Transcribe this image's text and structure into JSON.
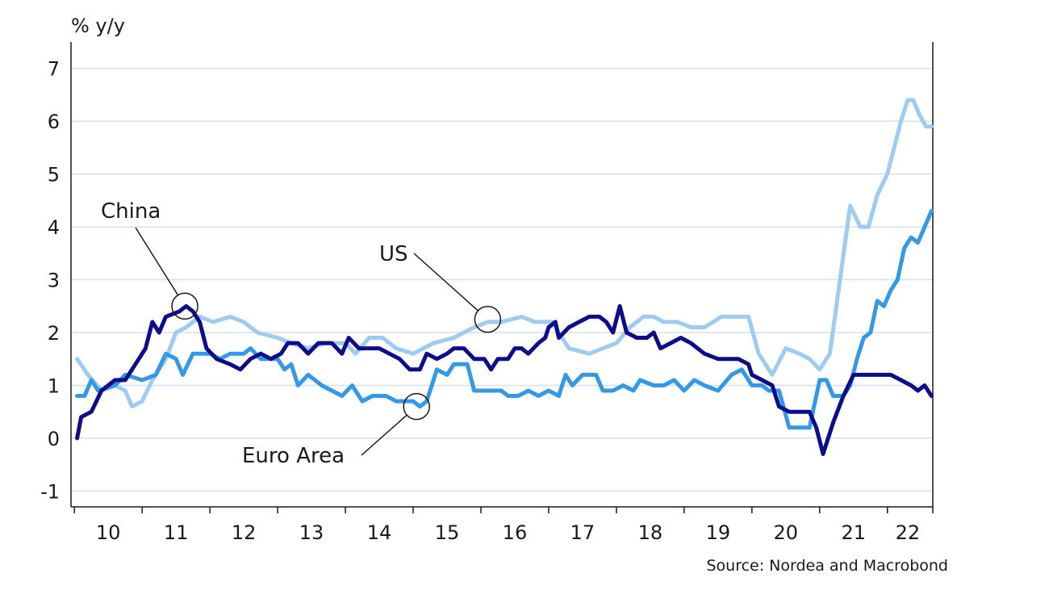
{
  "chart_data": {
    "type": "line",
    "unit_label": "% y/y",
    "source": "Source: Nordea and Macrobond",
    "y_axis": {
      "range": [
        -1.3,
        7.5
      ],
      "ticks": [
        -1,
        0,
        1,
        2,
        3,
        4,
        5,
        6,
        7
      ],
      "gridlines": true
    },
    "x_axis": {
      "range": [
        2009.95,
        2022.67
      ],
      "tick_positions": [
        2010,
        2011,
        2012,
        2013,
        2014,
        2015,
        2016,
        2017,
        2018,
        2019,
        2020,
        2021,
        2022
      ],
      "labels": [
        {
          "label": "10",
          "at": 2010.5
        },
        {
          "label": "11",
          "at": 2011.5
        },
        {
          "label": "12",
          "at": 2012.5
        },
        {
          "label": "13",
          "at": 2013.5
        },
        {
          "label": "14",
          "at": 2014.5
        },
        {
          "label": "15",
          "at": 2015.5
        },
        {
          "label": "16",
          "at": 2016.5
        },
        {
          "label": "17",
          "at": 2017.5
        },
        {
          "label": "18",
          "at": 2018.5
        },
        {
          "label": "19",
          "at": 2019.5
        },
        {
          "label": "20",
          "at": 2020.5
        },
        {
          "label": "21",
          "at": 2021.5
        },
        {
          "label": "22",
          "at": 2022.3
        }
      ]
    },
    "series": [
      {
        "name": "US",
        "color": "#9dcbf2",
        "points": [
          [
            2010.04,
            1.5
          ],
          [
            2010.2,
            1.2
          ],
          [
            2010.4,
            0.9
          ],
          [
            2010.6,
            1.0
          ],
          [
            2010.75,
            0.9
          ],
          [
            2010.85,
            0.6
          ],
          [
            2011.0,
            0.7
          ],
          [
            2011.15,
            1.1
          ],
          [
            2011.35,
            1.5
          ],
          [
            2011.5,
            2.0
          ],
          [
            2011.65,
            2.1
          ],
          [
            2011.85,
            2.3
          ],
          [
            2012.05,
            2.2
          ],
          [
            2012.3,
            2.3
          ],
          [
            2012.5,
            2.2
          ],
          [
            2012.7,
            2.0
          ],
          [
            2013.0,
            1.9
          ],
          [
            2013.2,
            1.8
          ],
          [
            2013.45,
            1.7
          ],
          [
            2013.7,
            1.8
          ],
          [
            2014.0,
            1.8
          ],
          [
            2014.15,
            1.6
          ],
          [
            2014.35,
            1.9
          ],
          [
            2014.55,
            1.9
          ],
          [
            2014.75,
            1.7
          ],
          [
            2015.0,
            1.6
          ],
          [
            2015.3,
            1.8
          ],
          [
            2015.6,
            1.9
          ],
          [
            2015.9,
            2.1
          ],
          [
            2016.1,
            2.2
          ],
          [
            2016.3,
            2.2
          ],
          [
            2016.6,
            2.3
          ],
          [
            2016.8,
            2.2
          ],
          [
            2017.05,
            2.2
          ],
          [
            2017.3,
            1.7
          ],
          [
            2017.6,
            1.6
          ],
          [
            2017.8,
            1.7
          ],
          [
            2018.0,
            1.8
          ],
          [
            2018.2,
            2.1
          ],
          [
            2018.4,
            2.3
          ],
          [
            2018.55,
            2.3
          ],
          [
            2018.7,
            2.2
          ],
          [
            2018.9,
            2.2
          ],
          [
            2019.1,
            2.1
          ],
          [
            2019.3,
            2.1
          ],
          [
            2019.55,
            2.3
          ],
          [
            2019.75,
            2.3
          ],
          [
            2019.95,
            2.3
          ],
          [
            2020.1,
            1.6
          ],
          [
            2020.3,
            1.2
          ],
          [
            2020.5,
            1.7
          ],
          [
            2020.7,
            1.6
          ],
          [
            2020.85,
            1.5
          ],
          [
            2021.0,
            1.3
          ],
          [
            2021.15,
            1.6
          ],
          [
            2021.3,
            3.0
          ],
          [
            2021.45,
            4.4
          ],
          [
            2021.6,
            4.0
          ],
          [
            2021.72,
            4.0
          ],
          [
            2021.85,
            4.6
          ],
          [
            2022.0,
            5.0
          ],
          [
            2022.1,
            5.5
          ],
          [
            2022.2,
            6.0
          ],
          [
            2022.3,
            6.4
          ],
          [
            2022.38,
            6.4
          ],
          [
            2022.48,
            6.1
          ],
          [
            2022.57,
            5.9
          ],
          [
            2022.65,
            5.9
          ]
        ]
      },
      {
        "name": "Euro Area",
        "color": "#3399e6",
        "points": [
          [
            2010.04,
            0.8
          ],
          [
            2010.15,
            0.8
          ],
          [
            2010.25,
            1.1
          ],
          [
            2010.35,
            0.9
          ],
          [
            2010.6,
            1.0
          ],
          [
            2010.75,
            1.2
          ],
          [
            2011.0,
            1.1
          ],
          [
            2011.2,
            1.2
          ],
          [
            2011.35,
            1.6
          ],
          [
            2011.5,
            1.5
          ],
          [
            2011.6,
            1.2
          ],
          [
            2011.75,
            1.6
          ],
          [
            2012.0,
            1.6
          ],
          [
            2012.15,
            1.5
          ],
          [
            2012.3,
            1.6
          ],
          [
            2012.5,
            1.6
          ],
          [
            2012.6,
            1.7
          ],
          [
            2012.75,
            1.5
          ],
          [
            2013.0,
            1.5
          ],
          [
            2013.1,
            1.3
          ],
          [
            2013.2,
            1.4
          ],
          [
            2013.3,
            1.0
          ],
          [
            2013.45,
            1.2
          ],
          [
            2013.65,
            1.0
          ],
          [
            2013.8,
            0.9
          ],
          [
            2013.95,
            0.8
          ],
          [
            2014.1,
            1.0
          ],
          [
            2014.25,
            0.7
          ],
          [
            2014.4,
            0.8
          ],
          [
            2014.6,
            0.8
          ],
          [
            2014.75,
            0.7
          ],
          [
            2014.9,
            0.7
          ],
          [
            2015.0,
            0.7
          ],
          [
            2015.1,
            0.6
          ],
          [
            2015.2,
            0.7
          ],
          [
            2015.35,
            1.3
          ],
          [
            2015.5,
            1.2
          ],
          [
            2015.6,
            1.4
          ],
          [
            2015.8,
            1.4
          ],
          [
            2015.9,
            0.9
          ],
          [
            2016.0,
            0.9
          ],
          [
            2016.1,
            0.9
          ],
          [
            2016.3,
            0.9
          ],
          [
            2016.4,
            0.8
          ],
          [
            2016.55,
            0.8
          ],
          [
            2016.7,
            0.9
          ],
          [
            2016.85,
            0.8
          ],
          [
            2017.0,
            0.9
          ],
          [
            2017.15,
            0.8
          ],
          [
            2017.25,
            1.2
          ],
          [
            2017.35,
            1.0
          ],
          [
            2017.5,
            1.2
          ],
          [
            2017.7,
            1.2
          ],
          [
            2017.8,
            0.9
          ],
          [
            2017.95,
            0.9
          ],
          [
            2018.1,
            1.0
          ],
          [
            2018.25,
            0.9
          ],
          [
            2018.35,
            1.1
          ],
          [
            2018.55,
            1.0
          ],
          [
            2018.7,
            1.0
          ],
          [
            2018.85,
            1.1
          ],
          [
            2019.0,
            0.9
          ],
          [
            2019.15,
            1.1
          ],
          [
            2019.3,
            1.0
          ],
          [
            2019.5,
            0.9
          ],
          [
            2019.7,
            1.2
          ],
          [
            2019.85,
            1.3
          ],
          [
            2020.0,
            1.0
          ],
          [
            2020.15,
            1.0
          ],
          [
            2020.25,
            0.9
          ],
          [
            2020.4,
            0.9
          ],
          [
            2020.55,
            0.2
          ],
          [
            2020.7,
            0.2
          ],
          [
            2020.85,
            0.2
          ],
          [
            2021.0,
            1.1
          ],
          [
            2021.1,
            1.1
          ],
          [
            2021.2,
            0.8
          ],
          [
            2021.35,
            0.8
          ],
          [
            2021.45,
            1.0
          ],
          [
            2021.55,
            1.5
          ],
          [
            2021.65,
            1.9
          ],
          [
            2021.75,
            2.0
          ],
          [
            2021.85,
            2.6
          ],
          [
            2021.95,
            2.5
          ],
          [
            2022.05,
            2.8
          ],
          [
            2022.15,
            3.0
          ],
          [
            2022.25,
            3.6
          ],
          [
            2022.35,
            3.8
          ],
          [
            2022.45,
            3.7
          ],
          [
            2022.55,
            4.0
          ],
          [
            2022.65,
            4.3
          ]
        ]
      },
      {
        "name": "China",
        "color": "#0d0d8c",
        "points": [
          [
            2010.04,
            0.0
          ],
          [
            2010.1,
            0.4
          ],
          [
            2010.25,
            0.5
          ],
          [
            2010.4,
            0.9
          ],
          [
            2010.6,
            1.1
          ],
          [
            2010.75,
            1.1
          ],
          [
            2010.9,
            1.4
          ],
          [
            2011.05,
            1.7
          ],
          [
            2011.15,
            2.2
          ],
          [
            2011.25,
            2.0
          ],
          [
            2011.35,
            2.3
          ],
          [
            2011.55,
            2.4
          ],
          [
            2011.65,
            2.5
          ],
          [
            2011.75,
            2.4
          ],
          [
            2011.85,
            2.2
          ],
          [
            2011.95,
            1.7
          ],
          [
            2012.1,
            1.5
          ],
          [
            2012.3,
            1.4
          ],
          [
            2012.45,
            1.3
          ],
          [
            2012.6,
            1.5
          ],
          [
            2012.75,
            1.6
          ],
          [
            2012.9,
            1.5
          ],
          [
            2013.05,
            1.6
          ],
          [
            2013.15,
            1.8
          ],
          [
            2013.3,
            1.8
          ],
          [
            2013.45,
            1.6
          ],
          [
            2013.6,
            1.8
          ],
          [
            2013.8,
            1.8
          ],
          [
            2013.95,
            1.6
          ],
          [
            2014.05,
            1.9
          ],
          [
            2014.2,
            1.7
          ],
          [
            2014.35,
            1.7
          ],
          [
            2014.5,
            1.7
          ],
          [
            2014.65,
            1.6
          ],
          [
            2014.8,
            1.5
          ],
          [
            2014.95,
            1.3
          ],
          [
            2015.1,
            1.3
          ],
          [
            2015.2,
            1.6
          ],
          [
            2015.35,
            1.5
          ],
          [
            2015.5,
            1.6
          ],
          [
            2015.6,
            1.7
          ],
          [
            2015.75,
            1.7
          ],
          [
            2015.9,
            1.5
          ],
          [
            2016.05,
            1.5
          ],
          [
            2016.15,
            1.3
          ],
          [
            2016.25,
            1.5
          ],
          [
            2016.4,
            1.5
          ],
          [
            2016.5,
            1.7
          ],
          [
            2016.6,
            1.7
          ],
          [
            2016.7,
            1.6
          ],
          [
            2016.85,
            1.8
          ],
          [
            2016.95,
            1.9
          ],
          [
            2017.0,
            2.1
          ],
          [
            2017.1,
            2.2
          ],
          [
            2017.15,
            1.9
          ],
          [
            2017.3,
            2.1
          ],
          [
            2017.45,
            2.2
          ],
          [
            2017.6,
            2.3
          ],
          [
            2017.75,
            2.3
          ],
          [
            2017.85,
            2.2
          ],
          [
            2017.95,
            2.0
          ],
          [
            2018.05,
            2.5
          ],
          [
            2018.15,
            2.0
          ],
          [
            2018.3,
            1.9
          ],
          [
            2018.45,
            1.9
          ],
          [
            2018.55,
            2.0
          ],
          [
            2018.65,
            1.7
          ],
          [
            2018.8,
            1.8
          ],
          [
            2018.95,
            1.9
          ],
          [
            2019.1,
            1.8
          ],
          [
            2019.3,
            1.6
          ],
          [
            2019.5,
            1.5
          ],
          [
            2019.65,
            1.5
          ],
          [
            2019.8,
            1.5
          ],
          [
            2019.95,
            1.4
          ],
          [
            2020.0,
            1.2
          ],
          [
            2020.15,
            1.1
          ],
          [
            2020.3,
            1.0
          ],
          [
            2020.4,
            0.6
          ],
          [
            2020.55,
            0.5
          ],
          [
            2020.7,
            0.5
          ],
          [
            2020.85,
            0.5
          ],
          [
            2020.95,
            0.2
          ],
          [
            2021.05,
            -0.3
          ],
          [
            2021.2,
            0.3
          ],
          [
            2021.35,
            0.8
          ],
          [
            2021.5,
            1.2
          ],
          [
            2021.6,
            1.2
          ],
          [
            2021.75,
            1.2
          ],
          [
            2021.9,
            1.2
          ],
          [
            2022.05,
            1.2
          ],
          [
            2022.2,
            1.1
          ],
          [
            2022.35,
            1.0
          ],
          [
            2022.45,
            0.9
          ],
          [
            2022.55,
            1.0
          ],
          [
            2022.65,
            0.8
          ]
        ]
      }
    ],
    "annotations": [
      {
        "name": "China",
        "text": "China",
        "circle": [
          2011.63,
          2.5
        ]
      },
      {
        "name": "US",
        "text": "US",
        "circle": [
          2016.1,
          2.25
        ]
      },
      {
        "name": "Euro Area",
        "text": "Euro Area",
        "circle": [
          2015.05,
          0.6
        ]
      }
    ]
  }
}
